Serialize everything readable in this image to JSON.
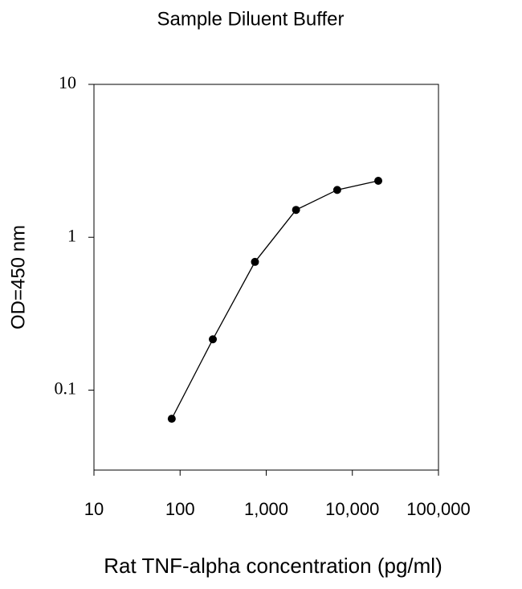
{
  "chart_data": {
    "type": "line",
    "title": "Sample Diluent Buffer",
    "x_label": "Rat TNF-alpha concentration (pg/ml)",
    "y_label": "OD=450 nm",
    "x": [
      80,
      240,
      740,
      2220,
      6670,
      20000
    ],
    "series": [
      {
        "name": "Sample Diluent Buffer",
        "color": "#000000",
        "values": [
          0.065,
          0.215,
          0.69,
          1.51,
          2.04,
          2.34
        ]
      }
    ],
    "x_log": true,
    "y_log": true,
    "xlim": [
      10,
      100000
    ],
    "ylim": [
      0.03,
      10
    ],
    "xticks": [
      10,
      100,
      {
        "value": 1000,
        "label": "1,000"
      },
      {
        "value": 10000,
        "label": "10,000"
      },
      {
        "value": 100000,
        "label": "100,000"
      }
    ],
    "yticks": [
      0.1,
      1,
      10
    ]
  }
}
